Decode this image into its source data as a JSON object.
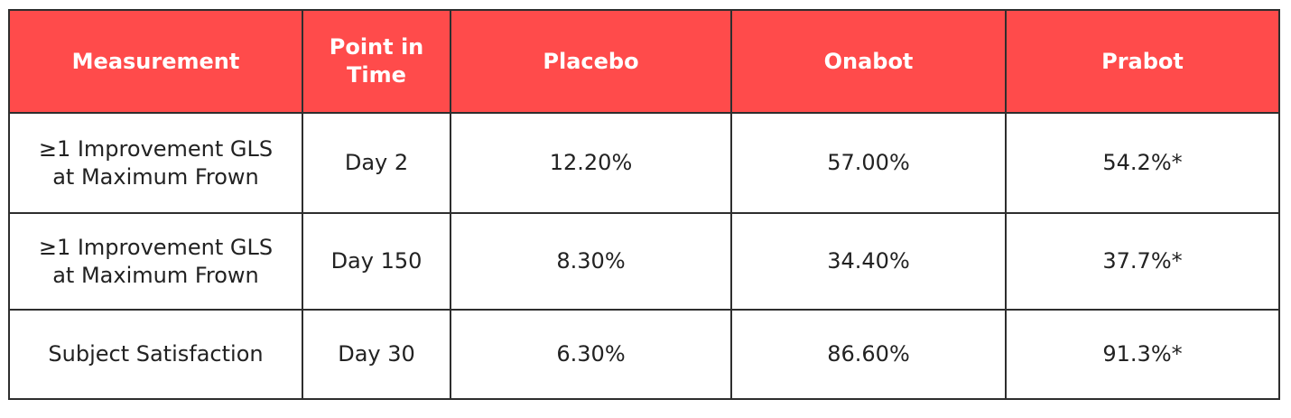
{
  "header_color": "#ff4b4b",
  "table": {
    "headers": [
      "Measurement",
      "Point in Time",
      "Placebo",
      "Onabot",
      "Prabot"
    ],
    "rows": [
      [
        "≥1 Improvement GLS at Maximum Frown",
        "Day 2",
        "12.20%",
        "57.00%",
        "54.2%*"
      ],
      [
        "≥1 Improvement GLS at Maximum Frown",
        "Day 150",
        "8.30%",
        "34.40%",
        "37.7%*"
      ],
      [
        "Subject Satisfaction",
        "Day 30",
        "6.30%",
        "86.60%",
        "91.3%*"
      ]
    ]
  }
}
